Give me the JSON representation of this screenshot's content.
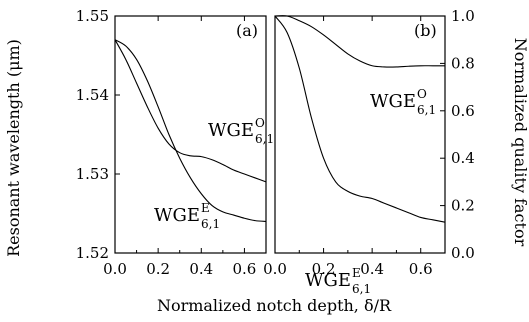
{
  "chart_data": [
    {
      "type": "line",
      "panel_label": "(a)",
      "xlabel": "Normalized notch depth, δ/R",
      "ylabel": "Resonant wavelength (μm)",
      "xlim": [
        0.0,
        0.7
      ],
      "ylim": [
        1.52,
        1.55
      ],
      "xticks": [
        "0.0",
        "0.2",
        "0.4",
        "0.6"
      ],
      "yticks": [
        "1.52",
        "1.53",
        "1.54",
        "1.55"
      ],
      "grid": false,
      "series": [
        {
          "name": "WGE^O_6,1",
          "label_main": "WGE",
          "label_sup": "O",
          "label_sub": "6,1",
          "x": [
            0.0,
            0.05,
            0.1,
            0.15,
            0.2,
            0.25,
            0.3,
            0.35,
            0.4,
            0.45,
            0.5,
            0.55,
            0.6,
            0.65,
            0.7
          ],
          "values": [
            1.547,
            1.5445,
            1.5415,
            1.5385,
            1.5358,
            1.5338,
            1.5327,
            1.5323,
            1.5322,
            1.5318,
            1.5312,
            1.5305,
            1.53,
            1.5295,
            1.529
          ]
        },
        {
          "name": "WGE^E_6,1",
          "label_main": "WGE",
          "label_sup": "E",
          "label_sub": "6,1",
          "x": [
            0.0,
            0.05,
            0.1,
            0.15,
            0.2,
            0.25,
            0.3,
            0.35,
            0.4,
            0.45,
            0.5,
            0.55,
            0.6,
            0.65,
            0.7
          ],
          "values": [
            1.547,
            1.5462,
            1.5445,
            1.5418,
            1.5385,
            1.535,
            1.532,
            1.5295,
            1.5275,
            1.526,
            1.5252,
            1.5248,
            1.5244,
            1.5241,
            1.524
          ]
        }
      ]
    },
    {
      "type": "line",
      "panel_label": "(b)",
      "xlabel": "Normalized notch depth, δ/R",
      "ylabel": "Normalized quality factor",
      "xlim": [
        0.0,
        0.7
      ],
      "ylim": [
        0.0,
        1.0
      ],
      "xticks": [
        "0.0",
        "0.2",
        "0.4",
        "0.6"
      ],
      "yticks": [
        "0.0",
        "0.2",
        "0.4",
        "0.6",
        "0.8",
        "1.0"
      ],
      "grid": false,
      "series": [
        {
          "name": "WGE^O_6,1",
          "label_main": "WGE",
          "label_sup": "O",
          "label_sub": "6,1",
          "x": [
            0.0,
            0.05,
            0.1,
            0.15,
            0.2,
            0.25,
            0.3,
            0.35,
            0.4,
            0.45,
            0.5,
            0.55,
            0.6,
            0.65,
            0.7
          ],
          "values": [
            1.0,
            1.0,
            0.98,
            0.955,
            0.92,
            0.88,
            0.84,
            0.81,
            0.79,
            0.785,
            0.785,
            0.788,
            0.79,
            0.79,
            0.79
          ]
        },
        {
          "name": "WGE^E_6,1",
          "label_main": "WGE",
          "label_sup": "E",
          "label_sub": "6,1",
          "x": [
            0.0,
            0.05,
            0.1,
            0.15,
            0.2,
            0.25,
            0.3,
            0.35,
            0.4,
            0.45,
            0.5,
            0.55,
            0.6,
            0.65,
            0.7
          ],
          "values": [
            1.0,
            0.93,
            0.78,
            0.57,
            0.4,
            0.3,
            0.26,
            0.24,
            0.23,
            0.21,
            0.19,
            0.17,
            0.15,
            0.14,
            0.13
          ]
        }
      ]
    }
  ]
}
